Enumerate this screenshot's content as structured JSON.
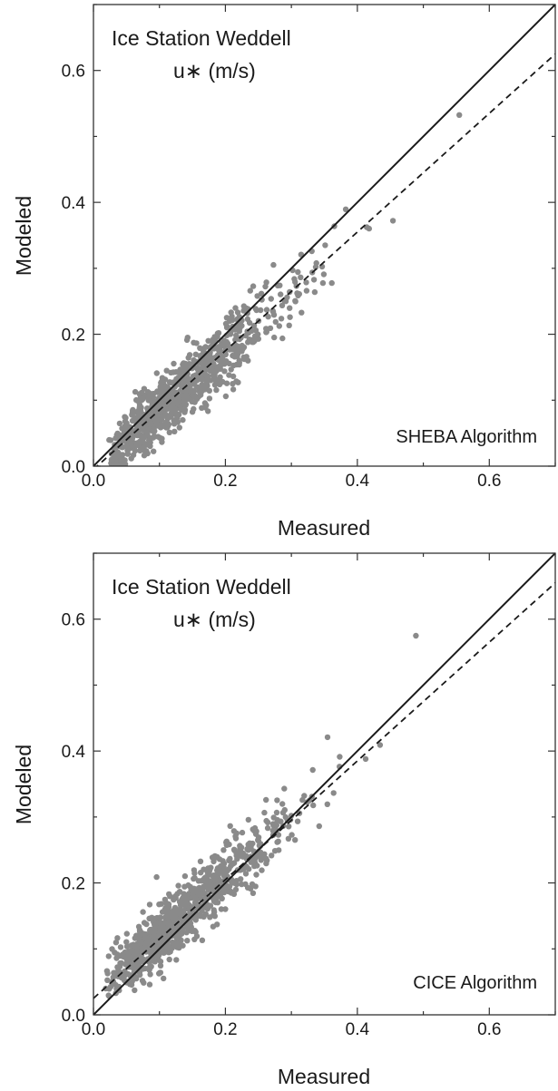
{
  "chart_data": [
    {
      "type": "scatter",
      "title": "Ice Station Weddell",
      "subtitle": "u∗ (m/s)",
      "annotation": "SHEBA Algorithm",
      "xlabel": "Measured",
      "ylabel": "Modeled",
      "xlim": [
        0,
        0.7
      ],
      "ylim": [
        0,
        0.7
      ],
      "xticks": [
        "0.0",
        "0.2",
        "0.4",
        "0.6"
      ],
      "yticks": [
        "0.0",
        "0.2",
        "0.4",
        "0.6"
      ],
      "grid": false,
      "point_color": "#8a8a8a",
      "reference_lines": [
        {
          "style": "solid",
          "slope": 1.0,
          "intercept": 0.0
        },
        {
          "style": "dashed",
          "slope": 0.9,
          "intercept": -0.005
        }
      ],
      "scatter_model": {
        "count": 900,
        "slope": 0.9,
        "intercept": -0.005,
        "seed": 11
      }
    },
    {
      "type": "scatter",
      "title": "Ice Station Weddell",
      "subtitle": "u∗ (m/s)",
      "annotation": "CICE Algorithm",
      "xlabel": "Measured",
      "ylabel": "Modeled",
      "xlim": [
        0,
        0.7
      ],
      "ylim": [
        0,
        0.7
      ],
      "xticks": [
        "0.0",
        "0.2",
        "0.4",
        "0.6"
      ],
      "yticks": [
        "0.0",
        "0.2",
        "0.4",
        "0.6"
      ],
      "grid": false,
      "point_color": "#8a8a8a",
      "reference_lines": [
        {
          "style": "solid",
          "slope": 1.0,
          "intercept": 0.0
        },
        {
          "style": "dashed",
          "slope": 0.9,
          "intercept": 0.025
        }
      ],
      "scatter_model": {
        "count": 900,
        "slope": 0.9,
        "intercept": 0.028,
        "seed": 29
      }
    }
  ]
}
